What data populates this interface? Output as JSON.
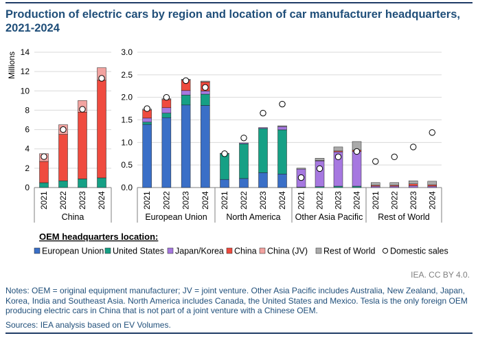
{
  "title": "Production of electric cars by region and location of car manufacturer headquarters, 2021-2024",
  "credit": "IEA. CC BY 4.0.",
  "notes": "Notes: OEM = original equipment manufacturer; JV = joint venture. Other Asia Pacific includes Australia, New Zealand, Japan, Korea, India and Southeast Asia. North America includes Canada, the United States and Mexico. Tesla is the only foreign OEM producing electric cars in China that is not part of a joint venture with a Chinese OEM.",
  "sources": "Sources: IEA analysis based on EV Volumes.",
  "colors": {
    "European Union": "#3a6fc7",
    "United States": "#16a085",
    "Japan/Korea": "#a678e0",
    "China": "#ef4b3f",
    "China (JV)": "#f2a3a0",
    "Rest of World": "#aaaaaa"
  },
  "chart_data": [
    {
      "type": "bar",
      "stacked": true,
      "region": "China",
      "ylabel": "Millions",
      "ylim": [
        0,
        14
      ],
      "yticks": [
        0,
        2,
        4,
        6,
        8,
        10,
        12,
        14
      ],
      "categories": [
        "2021",
        "2022",
        "2023",
        "2024"
      ],
      "series": [
        {
          "name": "European Union",
          "values": [
            0,
            0,
            0,
            0
          ]
        },
        {
          "name": "United States",
          "values": [
            0.5,
            0.7,
            0.9,
            1.0
          ]
        },
        {
          "name": "Japan/Korea",
          "values": [
            0,
            0,
            0,
            0
          ]
        },
        {
          "name": "China",
          "values": [
            2.2,
            4.8,
            6.9,
            10.1
          ]
        },
        {
          "name": "China (JV)",
          "values": [
            0.8,
            1.0,
            1.2,
            1.3
          ]
        },
        {
          "name": "Rest of World",
          "values": [
            0,
            0,
            0,
            0
          ]
        }
      ],
      "domestic_sales": [
        3.2,
        6.0,
        8.1,
        11.3
      ]
    },
    {
      "type": "bar",
      "stacked": true,
      "ylim": [
        0,
        3.0
      ],
      "yticks": [
        "0.0",
        "0.5",
        "1.0",
        "1.5",
        "2.0",
        "2.5",
        "3.0"
      ],
      "groups": [
        {
          "region": "European Union",
          "categories": [
            "2021",
            "2022",
            "2023",
            "2024"
          ],
          "series": [
            {
              "name": "European Union",
              "values": [
                1.4,
                1.55,
                1.83,
                1.82
              ]
            },
            {
              "name": "United States",
              "values": [
                0.05,
                0.1,
                0.22,
                0.25
              ]
            },
            {
              "name": "Japan/Korea",
              "values": [
                0.09,
                0.12,
                0.1,
                0.07
              ]
            },
            {
              "name": "China",
              "values": [
                0.18,
                0.18,
                0.23,
                0.2
              ]
            },
            {
              "name": "China (JV)",
              "values": [
                0,
                0,
                0,
                0
              ]
            },
            {
              "name": "Rest of World",
              "values": [
                0.02,
                0.02,
                0.02,
                0.02
              ]
            }
          ],
          "domestic_sales": [
            1.75,
            2.0,
            2.37,
            2.22
          ]
        },
        {
          "region": "North America",
          "categories": [
            "2021",
            "2022",
            "2023",
            "2024"
          ],
          "series": [
            {
              "name": "European Union",
              "values": [
                0.18,
                0.2,
                0.33,
                0.3
              ]
            },
            {
              "name": "United States",
              "values": [
                0.57,
                0.77,
                0.98,
                0.98
              ]
            },
            {
              "name": "Japan/Korea",
              "values": [
                0.01,
                0.02,
                0.02,
                0.07
              ]
            },
            {
              "name": "China",
              "values": [
                0,
                0,
                0,
                0
              ]
            },
            {
              "name": "China (JV)",
              "values": [
                0,
                0,
                0,
                0
              ]
            },
            {
              "name": "Rest of World",
              "values": [
                0,
                0,
                0,
                0.02
              ]
            }
          ],
          "domestic_sales": [
            0.75,
            1.1,
            1.65,
            1.85
          ]
        },
        {
          "region": "Other Asia Pacific",
          "categories": [
            "2021",
            "2022",
            "2023",
            "2024"
          ],
          "series": [
            {
              "name": "European Union",
              "values": [
                0,
                0,
                0,
                0
              ]
            },
            {
              "name": "United States",
              "values": [
                0.01,
                0.02,
                0.03,
                0.03
              ]
            },
            {
              "name": "Japan/Korea",
              "values": [
                0.4,
                0.57,
                0.76,
                0.77
              ]
            },
            {
              "name": "China",
              "values": [
                0,
                0.01,
                0.02,
                0.03
              ]
            },
            {
              "name": "China (JV)",
              "values": [
                0,
                0,
                0,
                0
              ]
            },
            {
              "name": "Rest of World",
              "values": [
                0.02,
                0.05,
                0.09,
                0.19
              ]
            }
          ],
          "domestic_sales": [
            0.22,
            0.42,
            0.68,
            0.8
          ]
        },
        {
          "region": "Rest of World",
          "categories": [
            "2021",
            "2022",
            "2023",
            "2024"
          ],
          "series": [
            {
              "name": "European Union",
              "values": [
                0,
                0,
                0,
                0
              ]
            },
            {
              "name": "United States",
              "values": [
                0,
                0,
                0,
                0
              ]
            },
            {
              "name": "Japan/Korea",
              "values": [
                0.03,
                0.03,
                0.04,
                0.03
              ]
            },
            {
              "name": "China",
              "values": [
                0.02,
                0.02,
                0.04,
                0.03
              ]
            },
            {
              "name": "China (JV)",
              "values": [
                0,
                0,
                0,
                0
              ]
            },
            {
              "name": "Rest of World",
              "values": [
                0.06,
                0.06,
                0.07,
                0.08
              ]
            }
          ],
          "domestic_sales": [
            0.58,
            0.68,
            0.9,
            1.22
          ]
        }
      ]
    }
  ],
  "legend": {
    "title": "OEM headquarters location:",
    "placement": "bottom",
    "items": [
      {
        "label": "European Union",
        "kind": "square"
      },
      {
        "label": "United States",
        "kind": "square"
      },
      {
        "label": "Japan/Korea",
        "kind": "square"
      },
      {
        "label": "China",
        "kind": "square"
      },
      {
        "label": "China (JV)",
        "kind": "square"
      },
      {
        "label": "Rest of World",
        "kind": "square"
      },
      {
        "label": "Domestic sales",
        "kind": "circle"
      }
    ]
  }
}
